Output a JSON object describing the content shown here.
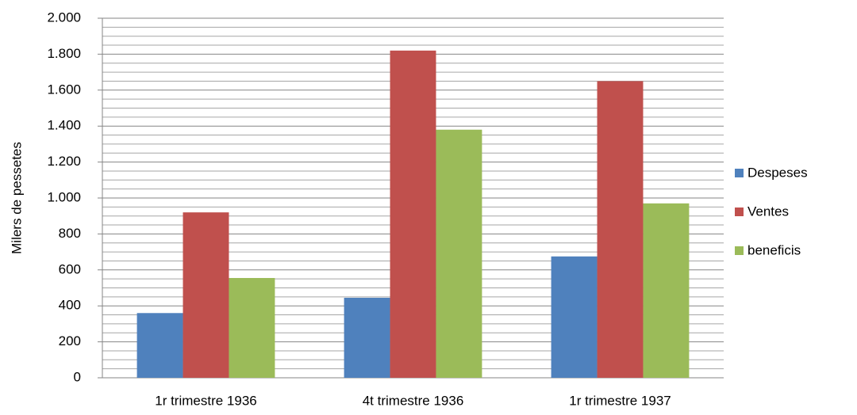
{
  "chart_data": {
    "type": "bar",
    "ylabel": "Milers de pessetes",
    "categories": [
      "1r trimestre 1936",
      "4t trimestre 1936",
      "1r trimestre 1937"
    ],
    "series": [
      {
        "name": "Despeses",
        "color": "#4f81bd",
        "values": [
          360,
          445,
          675
        ]
      },
      {
        "name": "Ventes",
        "color": "#c0504d",
        "values": [
          920,
          1820,
          1650
        ]
      },
      {
        "name": "beneficis",
        "color": "#9bbb59",
        "values": [
          555,
          1380,
          970
        ]
      }
    ],
    "ylim": [
      0,
      2000
    ],
    "yticks": [
      0,
      200,
      400,
      600,
      800,
      {
        "value": 1000,
        "label": "1.000"
      },
      {
        "value": 1200,
        "label": "1.200"
      },
      {
        "value": 1400,
        "label": "1.400"
      },
      {
        "value": 1600,
        "label": "1.600"
      },
      {
        "value": 1800,
        "label": "1.800"
      },
      {
        "value": 2000,
        "label": "2.000"
      }
    ],
    "yminorticks": [
      50,
      100,
      150,
      250,
      300,
      350,
      450,
      500,
      550,
      650,
      700,
      750,
      850,
      900,
      950,
      1050,
      1100,
      1150,
      1250,
      1300,
      1350,
      1450,
      1500,
      1550,
      1650,
      1700,
      1750,
      1850,
      1900,
      1950
    ],
    "grid": true,
    "legend": "right"
  }
}
